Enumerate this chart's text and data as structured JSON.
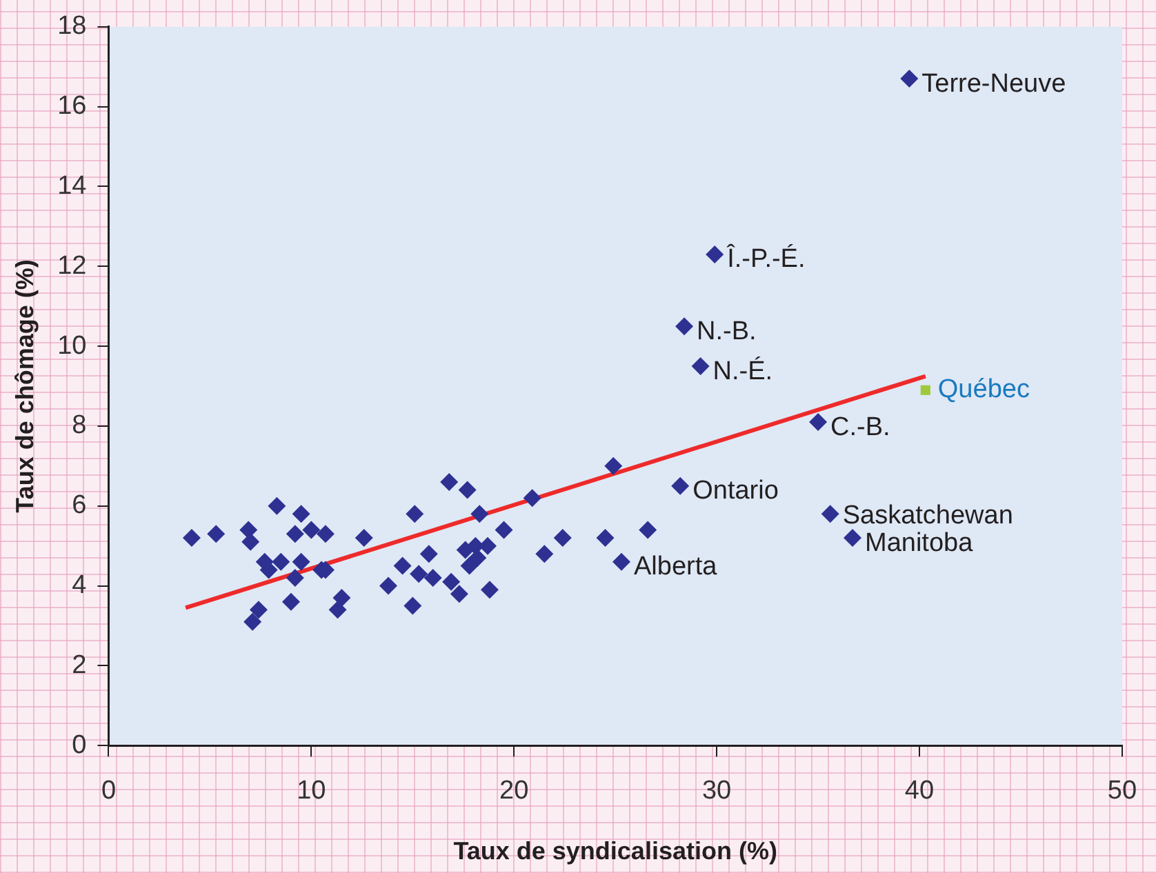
{
  "chart_data": {
    "type": "scatter",
    "xlabel": "Taux de syndicalisation (%)",
    "ylabel": "Taux de chômage (%)",
    "xlim": [
      0,
      50
    ],
    "xticks": [
      0,
      10,
      20,
      30,
      40,
      50
    ],
    "ylim": [
      0,
      18
    ],
    "yticks": [
      0,
      2,
      4,
      6,
      8,
      10,
      12,
      14,
      16,
      18
    ],
    "grid": false,
    "legend": false,
    "marker": "diamond",
    "series": [
      {
        "color": "#2e3192",
        "x": [
          39.5,
          29.9,
          28.4,
          29.2,
          35.0,
          28.2,
          35.6,
          36.7,
          25.3,
          4.1,
          5.3,
          6.9,
          7.0,
          8.3,
          9.5,
          9.2,
          10.0,
          10.7,
          7.7,
          8.5,
          7.9,
          9.5,
          9.2,
          10.5,
          10.7,
          9.0,
          7.4,
          7.1,
          11.5,
          11.3,
          12.6,
          13.8,
          14.5,
          15.1,
          15.0,
          15.3,
          15.8,
          16.0,
          16.8,
          16.9,
          17.3,
          17.7,
          18.3,
          17.6,
          18.1,
          18.7,
          17.8,
          18.2,
          18.8,
          19.5,
          20.9,
          21.5,
          22.4,
          24.5,
          24.9,
          26.6
        ],
        "values": [
          16.7,
          12.3,
          10.5,
          9.5,
          8.1,
          6.5,
          5.8,
          5.2,
          4.6,
          5.2,
          5.3,
          5.4,
          5.1,
          6.0,
          5.8,
          5.3,
          5.4,
          5.3,
          4.6,
          4.6,
          4.4,
          4.6,
          4.2,
          4.4,
          4.4,
          3.6,
          3.4,
          3.1,
          3.7,
          3.4,
          5.2,
          4.0,
          4.5,
          5.8,
          3.5,
          4.3,
          4.8,
          4.2,
          6.6,
          4.1,
          3.8,
          6.4,
          5.8,
          4.9,
          5.0,
          5.0,
          4.5,
          4.7,
          3.9,
          5.4,
          6.2,
          4.8,
          5.2,
          5.2,
          7.0,
          5.4
        ]
      },
      {
        "name": "Québec",
        "color": "#9ec93c",
        "marker": "square",
        "x": [
          40.3
        ],
        "values": [
          8.9
        ]
      },
      {
        "type": "line",
        "color": "#ee2a2a",
        "marker": "none",
        "x": [
          3.8,
          40.3
        ],
        "values": [
          3.45,
          9.25
        ]
      }
    ],
    "annotations": [
      {
        "text": "Terre-Neuve",
        "x": 39.5,
        "y": 16.7
      },
      {
        "text": "Î.-P.-É.",
        "x": 29.9,
        "y": 12.3
      },
      {
        "text": "N.-B.",
        "x": 28.4,
        "y": 10.5
      },
      {
        "text": "N.-É.",
        "x": 29.2,
        "y": 9.5
      },
      {
        "text": "C.-B.",
        "x": 35.0,
        "y": 8.1
      },
      {
        "text": "Ontario",
        "x": 28.2,
        "y": 6.5
      },
      {
        "text": "Manitoba",
        "x": 36.7,
        "y": 5.2
      },
      {
        "text": "Saskatchewan",
        "x": 35.6,
        "y": 5.8
      },
      {
        "text": "Alberta",
        "x": 25.3,
        "y": 4.6
      }
    ]
  }
}
